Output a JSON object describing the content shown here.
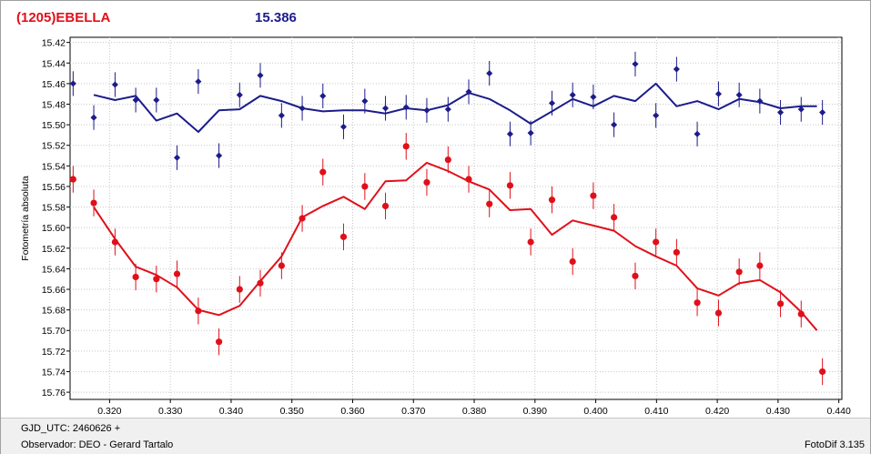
{
  "header": {
    "star_name": "(1205)EBELLA",
    "magnitude": "15.386"
  },
  "footer": {
    "gjd": "GJD_UTC: 2460626 +",
    "observer": "Observador: DEO - Gerard Tartalo",
    "software": "FotoDif 3.135"
  },
  "chart_data": {
    "type": "scatter",
    "ylabel": "Fotometría absoluta",
    "xlim": [
      0.3135,
      0.4405
    ],
    "ylim": [
      15.767,
      15.415
    ],
    "y_inverted": true,
    "grid": true,
    "x_ticks": [
      "0.320",
      "0.330",
      "0.340",
      "0.350",
      "0.360",
      "0.370",
      "0.380",
      "0.390",
      "0.400",
      "0.410",
      "0.420",
      "0.430",
      "0.440"
    ],
    "y_ticks": [
      "15.42",
      "15.44",
      "15.46",
      "15.48",
      "15.50",
      "15.52",
      "15.54",
      "15.56",
      "15.58",
      "15.60",
      "15.62",
      "15.64",
      "15.66",
      "15.68",
      "15.70",
      "15.72",
      "15.74",
      "15.76"
    ],
    "series": [
      {
        "color": "#1c1c8c",
        "x": [
          0.314,
          0.3174,
          0.3209,
          0.3243,
          0.3277,
          0.3311,
          0.3346,
          0.338,
          0.3414,
          0.3448,
          0.3483,
          0.3517,
          0.3551,
          0.3585,
          0.362,
          0.3654,
          0.3688,
          0.3722,
          0.3757,
          0.3791,
          0.3825,
          0.3859,
          0.3893,
          0.3928,
          0.3962,
          0.3996,
          0.403,
          0.4065,
          0.4099,
          0.4133,
          0.4167,
          0.4202,
          0.4236,
          0.427,
          0.4304,
          0.4338,
          0.4373
        ],
        "y": [
          15.46,
          15.493,
          15.461,
          15.476,
          15.476,
          15.532,
          15.458,
          15.53,
          15.471,
          15.452,
          15.491,
          15.484,
          15.472,
          15.502,
          15.477,
          15.484,
          15.483,
          15.486,
          15.485,
          15.468,
          15.45,
          15.509,
          15.508,
          15.479,
          15.471,
          15.473,
          15.5,
          15.441,
          15.491,
          15.446,
          15.509,
          15.47,
          15.471,
          15.477,
          15.488,
          15.485,
          15.488
        ],
        "error": 0.012,
        "fit_x": [
          0.3174,
          0.3209,
          0.3243,
          0.3277,
          0.3311,
          0.3346,
          0.338,
          0.3414,
          0.3448,
          0.3483,
          0.3517,
          0.3551,
          0.3585,
          0.362,
          0.3654,
          0.3688,
          0.3722,
          0.3757,
          0.3791,
          0.3825,
          0.3859,
          0.3893,
          0.3928,
          0.3962,
          0.3996,
          0.403,
          0.4065,
          0.4099,
          0.4133,
          0.4167,
          0.4202,
          0.4236,
          0.427,
          0.4304,
          0.4338,
          0.4364
        ],
        "fit_y": [
          15.471,
          15.476,
          15.472,
          15.496,
          15.489,
          15.507,
          15.486,
          15.485,
          15.472,
          15.477,
          15.484,
          15.487,
          15.486,
          15.486,
          15.489,
          15.484,
          15.486,
          15.481,
          15.469,
          15.475,
          15.486,
          15.499,
          15.487,
          15.475,
          15.482,
          15.472,
          15.477,
          15.46,
          15.482,
          15.477,
          15.485,
          15.475,
          15.478,
          15.484,
          15.482,
          15.482
        ]
      },
      {
        "color": "#e0101a",
        "x": [
          0.314,
          0.3174,
          0.3209,
          0.3243,
          0.3277,
          0.3311,
          0.3346,
          0.338,
          0.3414,
          0.3448,
          0.3483,
          0.3517,
          0.3551,
          0.3585,
          0.362,
          0.3654,
          0.3688,
          0.3722,
          0.3757,
          0.3791,
          0.3825,
          0.3859,
          0.3893,
          0.3928,
          0.3962,
          0.3996,
          0.403,
          0.4065,
          0.4099,
          0.4133,
          0.4167,
          0.4202,
          0.4236,
          0.427,
          0.4304,
          0.4338,
          0.4373
        ],
        "y": [
          15.553,
          15.576,
          15.614,
          15.648,
          15.65,
          15.645,
          15.681,
          15.711,
          15.66,
          15.654,
          15.637,
          15.591,
          15.546,
          15.609,
          15.56,
          15.579,
          15.521,
          15.556,
          15.534,
          15.553,
          15.577,
          15.559,
          15.614,
          15.573,
          15.633,
          15.569,
          15.59,
          15.647,
          15.614,
          15.624,
          15.673,
          15.683,
          15.643,
          15.637,
          15.674,
          15.684,
          15.74
        ],
        "error": 0.013,
        "fit_x": [
          0.3174,
          0.3209,
          0.3243,
          0.3277,
          0.3311,
          0.3346,
          0.338,
          0.3414,
          0.3448,
          0.3483,
          0.3517,
          0.3551,
          0.3585,
          0.362,
          0.3654,
          0.3688,
          0.3722,
          0.3757,
          0.3791,
          0.3825,
          0.3859,
          0.3893,
          0.3928,
          0.3962,
          0.3996,
          0.403,
          0.4065,
          0.4099,
          0.4133,
          0.4167,
          0.4202,
          0.4236,
          0.427,
          0.4304,
          0.4338,
          0.4364
        ],
        "fit_y": [
          15.58,
          15.611,
          15.638,
          15.646,
          15.658,
          15.68,
          15.685,
          15.676,
          15.652,
          15.628,
          15.59,
          15.579,
          15.57,
          15.582,
          15.555,
          15.554,
          15.537,
          15.545,
          15.555,
          15.563,
          15.583,
          15.582,
          15.607,
          15.593,
          15.598,
          15.603,
          15.618,
          15.628,
          15.637,
          15.659,
          15.666,
          15.654,
          15.651,
          15.663,
          15.682,
          15.7
        ]
      }
    ]
  }
}
